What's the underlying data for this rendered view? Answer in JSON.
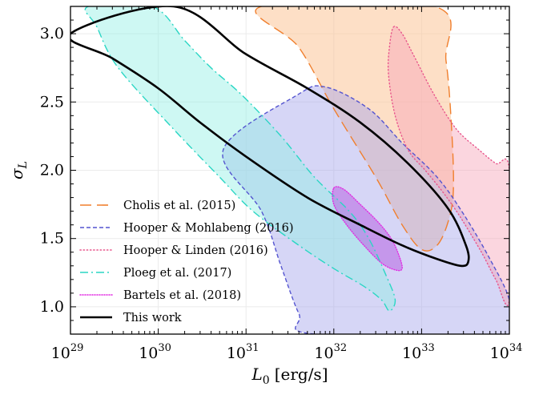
{
  "chart_data": {
    "type": "contour",
    "xlabel": "L_0 [erg/s]",
    "xlabel_main": "L",
    "xlabel_sub": "0",
    "xlabel_unit": "[erg/s]",
    "ylabel": "σ_L",
    "ylabel_main": "σ",
    "ylabel_sub": "L",
    "x_scale": "log",
    "xlim": [
      1e+29,
      1e+34
    ],
    "ylim": [
      0.8,
      3.2
    ],
    "x_ticks": [
      {
        "base": "10",
        "exp": "29",
        "value": 1e+29
      },
      {
        "base": "10",
        "exp": "30",
        "value": 1e+30
      },
      {
        "base": "10",
        "exp": "31",
        "value": 1e+31
      },
      {
        "base": "10",
        "exp": "32",
        "value": 1e+32
      },
      {
        "base": "10",
        "exp": "33",
        "value": 1e+33
      },
      {
        "base": "10",
        "exp": "34",
        "value": 1e+34
      }
    ],
    "y_ticks": [
      {
        "label": "1.0",
        "value": 1.0
      },
      {
        "label": "1.5",
        "value": 1.5
      },
      {
        "label": "2.0",
        "value": 2.0
      },
      {
        "label": "2.5",
        "value": 2.5
      },
      {
        "label": "3.0",
        "value": 3.0
      }
    ],
    "grid": true,
    "legend_position": "lower-left",
    "series": [
      {
        "name": "Cholis et al. (2015)",
        "color": "#f07f2d",
        "fill": "#fbc497",
        "fill_opacity": 0.55,
        "line_style": "long-dash",
        "contour": [
          [
            1.5e+31,
            3.2
          ],
          [
            4e+31,
            2.9
          ],
          [
            1e+32,
            2.45
          ],
          [
            3e+32,
            1.95
          ],
          [
            6e+32,
            1.6
          ],
          [
            1e+33,
            1.42
          ],
          [
            1.5e+33,
            1.45
          ],
          [
            2e+33,
            1.62
          ],
          [
            2.3e+33,
            1.85
          ],
          [
            2.2e+33,
            2.3
          ],
          [
            1.9e+33,
            2.8
          ],
          [
            1.4e+33,
            3.2
          ]
        ]
      },
      {
        "name": "Hooper & Mohlabeng (2016)",
        "color": "#5454d0",
        "fill": "#a4a4ec",
        "fill_opacity": 0.45,
        "line_style": "short-dash",
        "contour": [
          [
            6e+31,
            0.8
          ],
          [
            4e+31,
            0.95
          ],
          [
            2.5e+31,
            1.3
          ],
          [
            1.5e+31,
            1.7
          ],
          [
            5.5e+30,
            2.15
          ],
          [
            3.8e+31,
            2.55
          ],
          [
            8e+31,
            2.61
          ],
          [
            2.5e+32,
            2.45
          ],
          [
            6e+32,
            2.2
          ],
          [
            1.5e+33,
            1.95
          ],
          [
            3e+33,
            1.68
          ],
          [
            6e+33,
            1.35
          ],
          [
            1e+34,
            1.05
          ],
          [
            1e+34,
            0.8
          ]
        ]
      },
      {
        "name": "Hooper & Linden (2016)",
        "color": "#e8568c",
        "fill": "#f7a3b8",
        "fill_opacity": 0.45,
        "line_style": "dotted",
        "contour": [
          [
            4.8e+32,
            3.05
          ],
          [
            6e+32,
            3.0
          ],
          [
            8e+32,
            2.85
          ],
          [
            1.4e+33,
            2.55
          ],
          [
            2.5e+33,
            2.3
          ],
          [
            4.5e+33,
            2.15
          ],
          [
            7e+33,
            2.05
          ],
          [
            1e+34,
            2.0
          ],
          [
            1e+34,
            1.05
          ],
          [
            7e+33,
            1.2
          ],
          [
            5e+33,
            1.38
          ],
          [
            3.5e+33,
            1.55
          ],
          [
            2.5e+33,
            1.7
          ],
          [
            1.7e+33,
            1.85
          ],
          [
            1.1e+33,
            2.0
          ],
          [
            7e+32,
            2.15
          ],
          [
            5e+32,
            2.4
          ],
          [
            4.2e+32,
            2.7
          ],
          [
            4.3e+32,
            2.9
          ]
        ]
      },
      {
        "name": "Ploeg et al. (2017)",
        "color": "#2ad6c4",
        "fill": "#93efe5",
        "fill_opacity": 0.45,
        "line_style": "dash-dot",
        "contour": [
          [
            8.5e+29,
            3.2
          ],
          [
            2e+30,
            2.95
          ],
          [
            4e+30,
            2.75
          ],
          [
            9e+30,
            2.55
          ],
          [
            2.5e+31,
            2.25
          ],
          [
            6e+31,
            1.95
          ],
          [
            1.5e+32,
            1.7
          ],
          [
            2.5e+32,
            1.5
          ],
          [
            4e+32,
            1.22
          ],
          [
            5e+32,
            1.05
          ],
          [
            4.3e+32,
            0.97
          ],
          [
            3.5e+32,
            1.05
          ],
          [
            2.2e+32,
            1.15
          ],
          [
            1e+32,
            1.28
          ],
          [
            4e+31,
            1.45
          ],
          [
            1.2e+31,
            1.7
          ],
          [
            5e+30,
            1.95
          ],
          [
            1.5e+30,
            2.3
          ],
          [
            3.5e+29,
            2.75
          ],
          [
            2e+29,
            3.05
          ],
          [
            1.6e+29,
            3.2
          ]
        ]
      },
      {
        "name": "Bartels et al. (2018)",
        "color": "#e22ae2",
        "fill": "#b864e2",
        "fill_opacity": 0.55,
        "line_style": "fine-dotted",
        "contour": [
          [
            1e+32,
            1.87
          ],
          [
            1.3e+32,
            1.86
          ],
          [
            2e+32,
            1.75
          ],
          [
            3.2e+32,
            1.62
          ],
          [
            4.5e+32,
            1.5
          ],
          [
            5.5e+32,
            1.38
          ],
          [
            6e+32,
            1.28
          ],
          [
            5e+32,
            1.27
          ],
          [
            3.5e+32,
            1.32
          ],
          [
            2.2e+32,
            1.45
          ],
          [
            1.4e+32,
            1.6
          ],
          [
            1e+32,
            1.75
          ]
        ]
      },
      {
        "name": "This work",
        "color": "#000000",
        "fill": "none",
        "fill_opacity": 0,
        "line_style": "solid",
        "contour": [
          [
            1.5e+30,
            3.2
          ],
          [
            1e+31,
            2.85
          ],
          [
            5e+31,
            2.6
          ],
          [
            2e+32,
            2.35
          ],
          [
            7e+32,
            2.05
          ],
          [
            2e+33,
            1.72
          ],
          [
            3.2e+33,
            1.45
          ],
          [
            3.4e+33,
            1.33
          ],
          [
            2.8e+33,
            1.3
          ],
          [
            1.5e+33,
            1.35
          ],
          [
            6e+32,
            1.45
          ],
          [
            2e+32,
            1.6
          ],
          [
            5e+31,
            1.8
          ],
          [
            1e+31,
            2.1
          ],
          [
            3e+30,
            2.35
          ],
          [
            1e+30,
            2.6
          ],
          [
            3e+29,
            2.82
          ],
          [
            1e+29,
            3.0
          ]
        ]
      }
    ]
  }
}
